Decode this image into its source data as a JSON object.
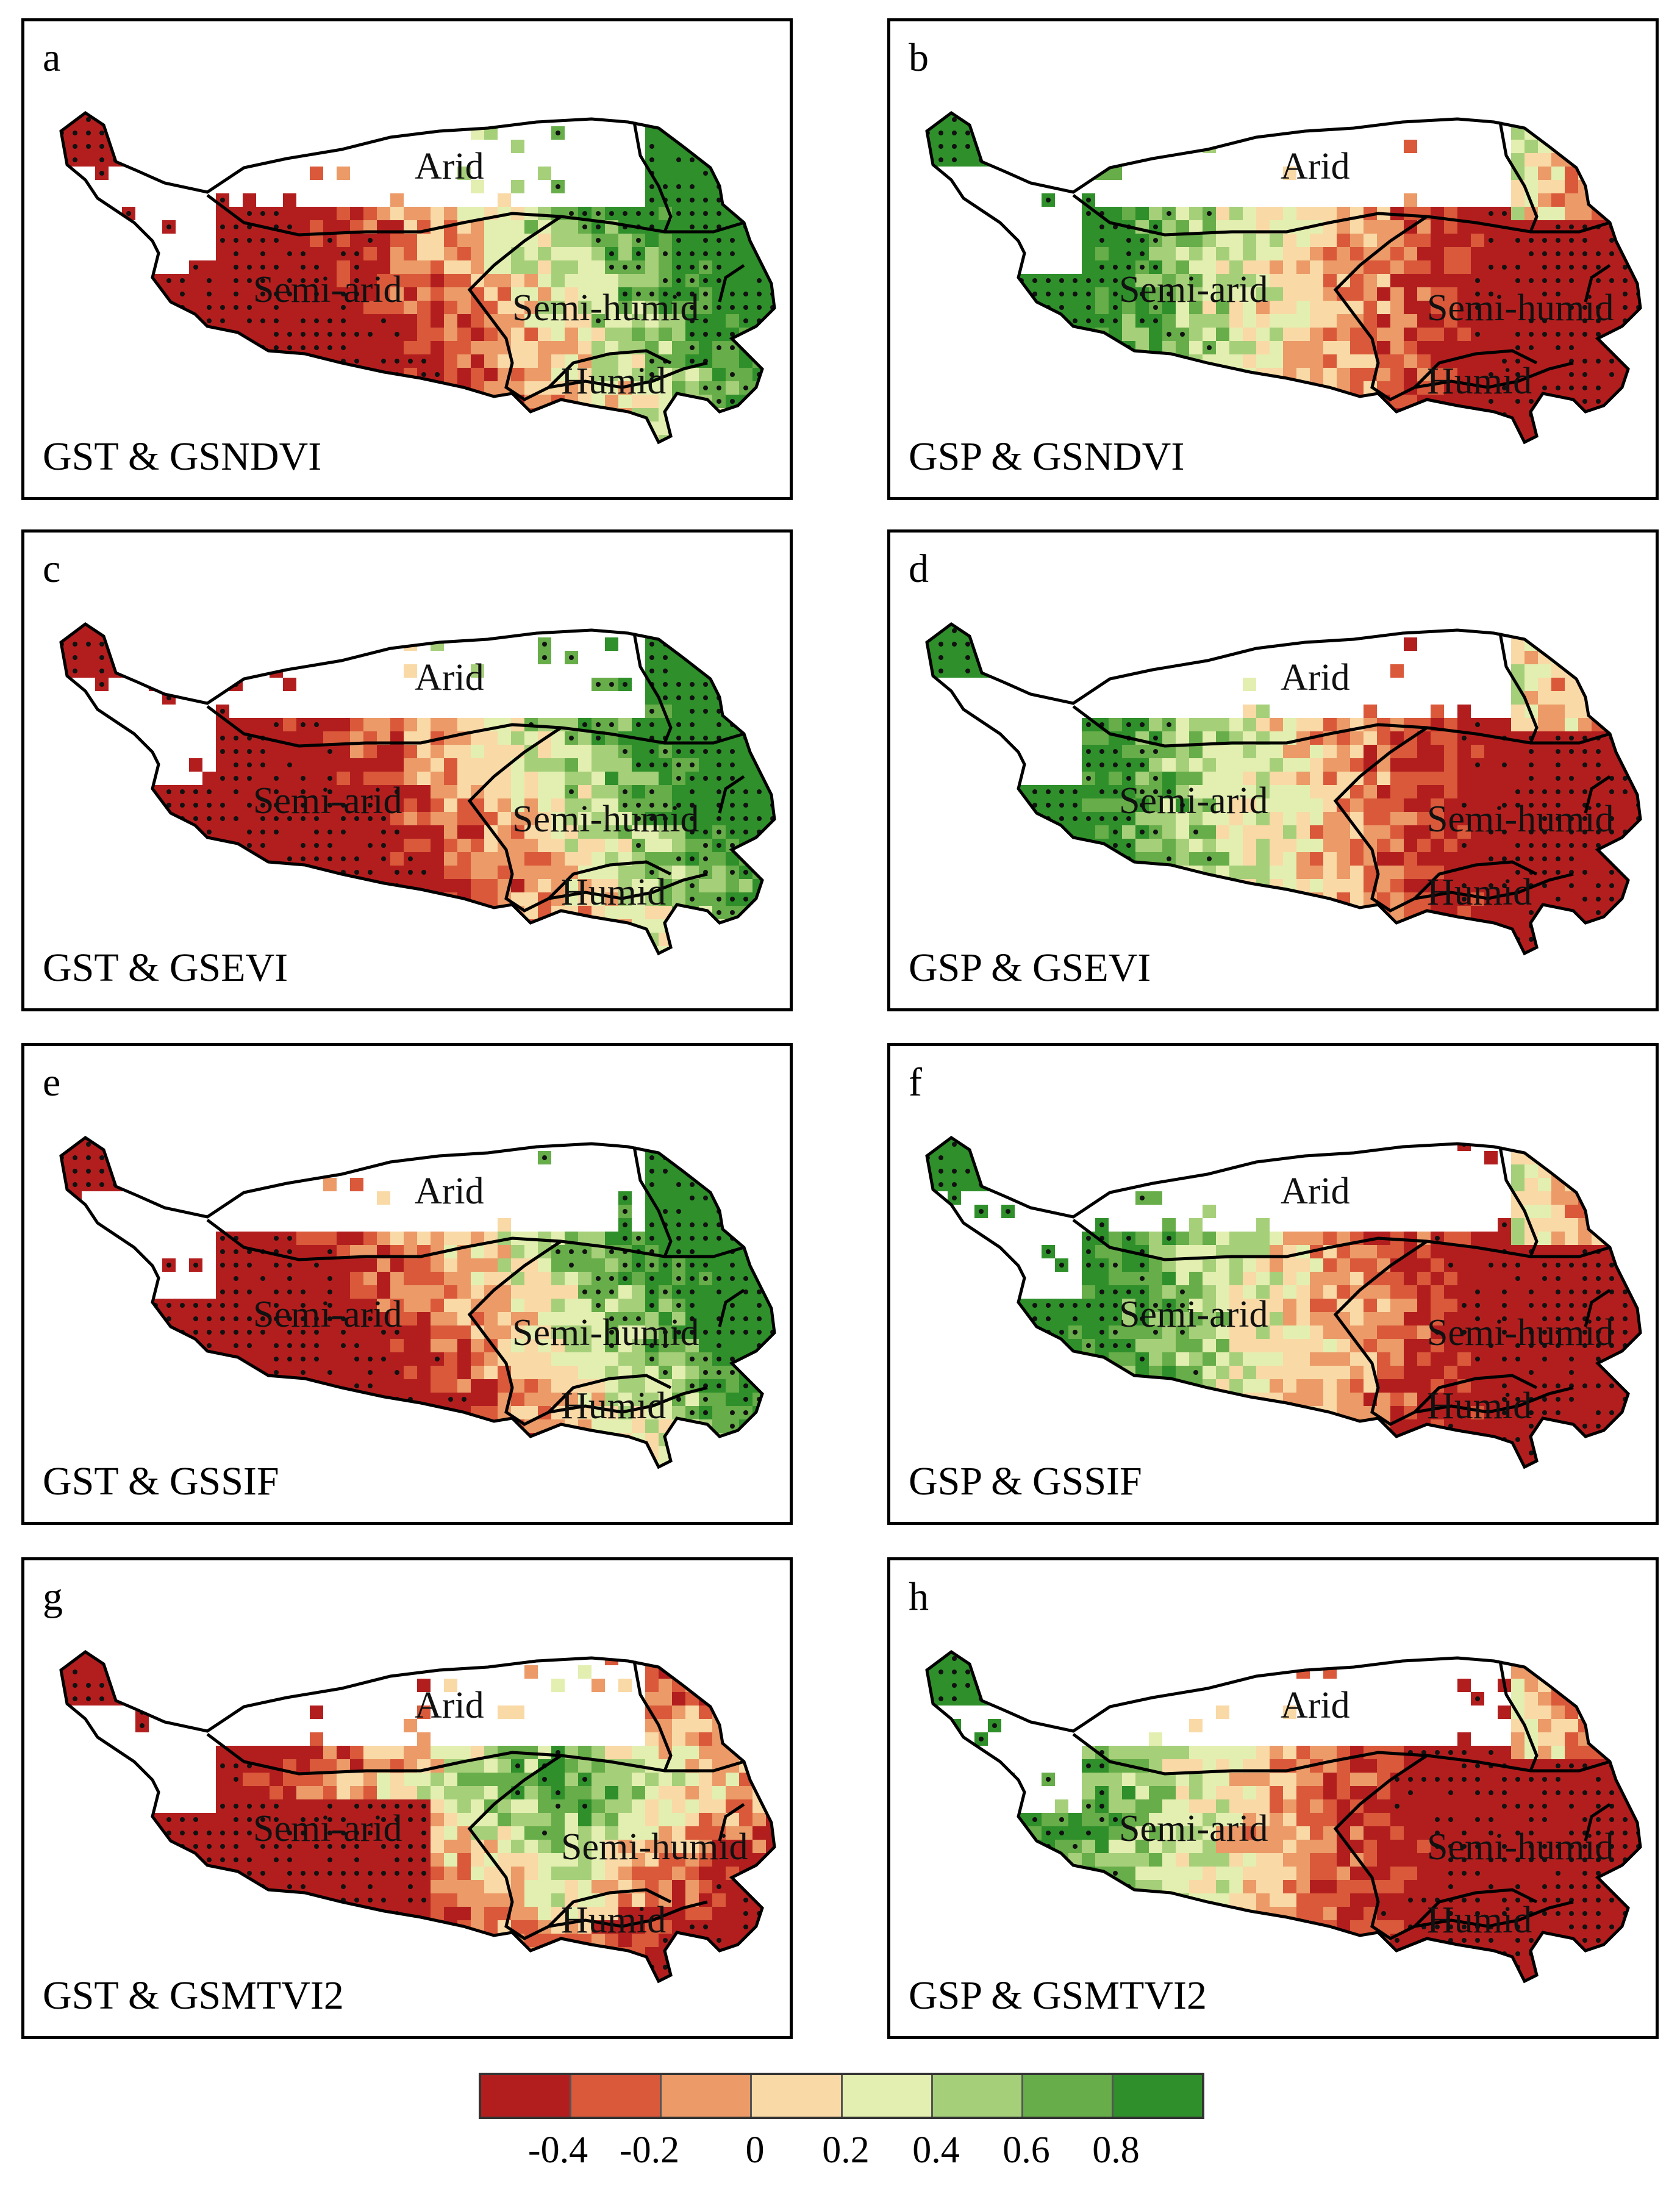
{
  "panels": [
    {
      "label": "a",
      "title": "GST & GSNDVI",
      "scheme": "green_east"
    },
    {
      "label": "b",
      "title": "GSP & GSNDVI",
      "scheme": "green_west"
    },
    {
      "label": "c",
      "title": "GST & GSEVI",
      "scheme": "green_east"
    },
    {
      "label": "d",
      "title": "GSP & GSEVI",
      "scheme": "green_west"
    },
    {
      "label": "e",
      "title": "GST & GSSIF",
      "scheme": "green_east"
    },
    {
      "label": "f",
      "title": "GSP & GSSIF",
      "scheme": "green_west"
    },
    {
      "label": "g",
      "title": "GST & GSMTVI2",
      "scheme": "green_center"
    },
    {
      "label": "h",
      "title": "GSP & GSMTVI2",
      "scheme": "red_east"
    }
  ],
  "zones": {
    "arid": "Arid",
    "semi_arid": "Semi-arid",
    "semi_humid": "Semi-humid",
    "humid": "Humid"
  },
  "legend": {
    "colors": [
      "#b21e1e",
      "#d9593a",
      "#eb9a68",
      "#f9d9a6",
      "#e3efb0",
      "#a6cf7a",
      "#67ad49",
      "#2f8f2a"
    ],
    "ticks": [
      "-0.4",
      "-0.2",
      "0",
      "0.2",
      "0.4",
      "0.6",
      "0.8"
    ]
  }
}
